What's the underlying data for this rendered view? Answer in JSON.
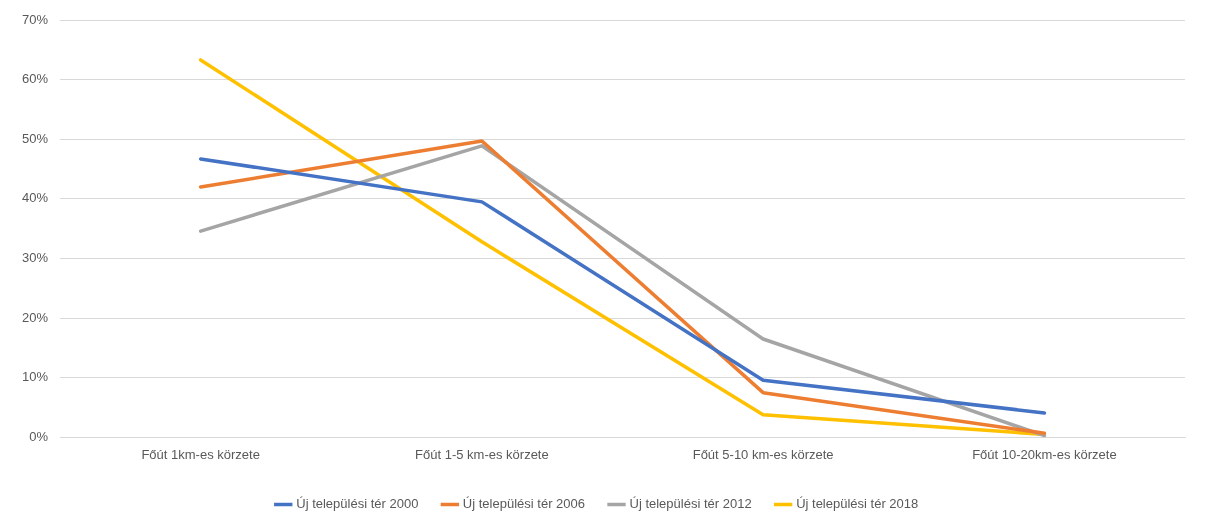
{
  "chart_data": {
    "type": "line",
    "categories": [
      "Főút 1km-es körzete",
      "Főút 1-5 km-es körzete",
      "Főút 5-10 km-es körzete",
      "Főút 10-20km-es körzete"
    ],
    "series": [
      {
        "name": "Új települési tér 2000",
        "color": "#4472c4",
        "values": [
          46.7,
          39.5,
          9.6,
          4.1
        ]
      },
      {
        "name": "Új települési tér 2006",
        "color": "#ed7d31",
        "values": [
          42,
          49.7,
          7.5,
          0.7
        ]
      },
      {
        "name": "Új települési tér 2012",
        "color": "#a5a5a5",
        "values": [
          34.6,
          48.9,
          16.5,
          0.3
        ]
      },
      {
        "name": "Új települési tér 2018",
        "color": "#ffc000",
        "values": [
          63.3,
          32.8,
          3.8,
          0.5
        ]
      }
    ],
    "ylim": [
      0,
      70
    ],
    "yticks": [
      {
        "value": 0,
        "label": "0%"
      },
      {
        "value": 10,
        "label": "10%"
      },
      {
        "value": 20,
        "label": "20%"
      },
      {
        "value": 30,
        "label": "30%"
      },
      {
        "value": 40,
        "label": "40%"
      },
      {
        "value": 50,
        "label": "50%"
      },
      {
        "value": 60,
        "label": "60%"
      },
      {
        "value": 70,
        "label": "70%"
      }
    ],
    "grid": "y",
    "legend": "bottom",
    "marker": "none",
    "line_style": "solid"
  }
}
